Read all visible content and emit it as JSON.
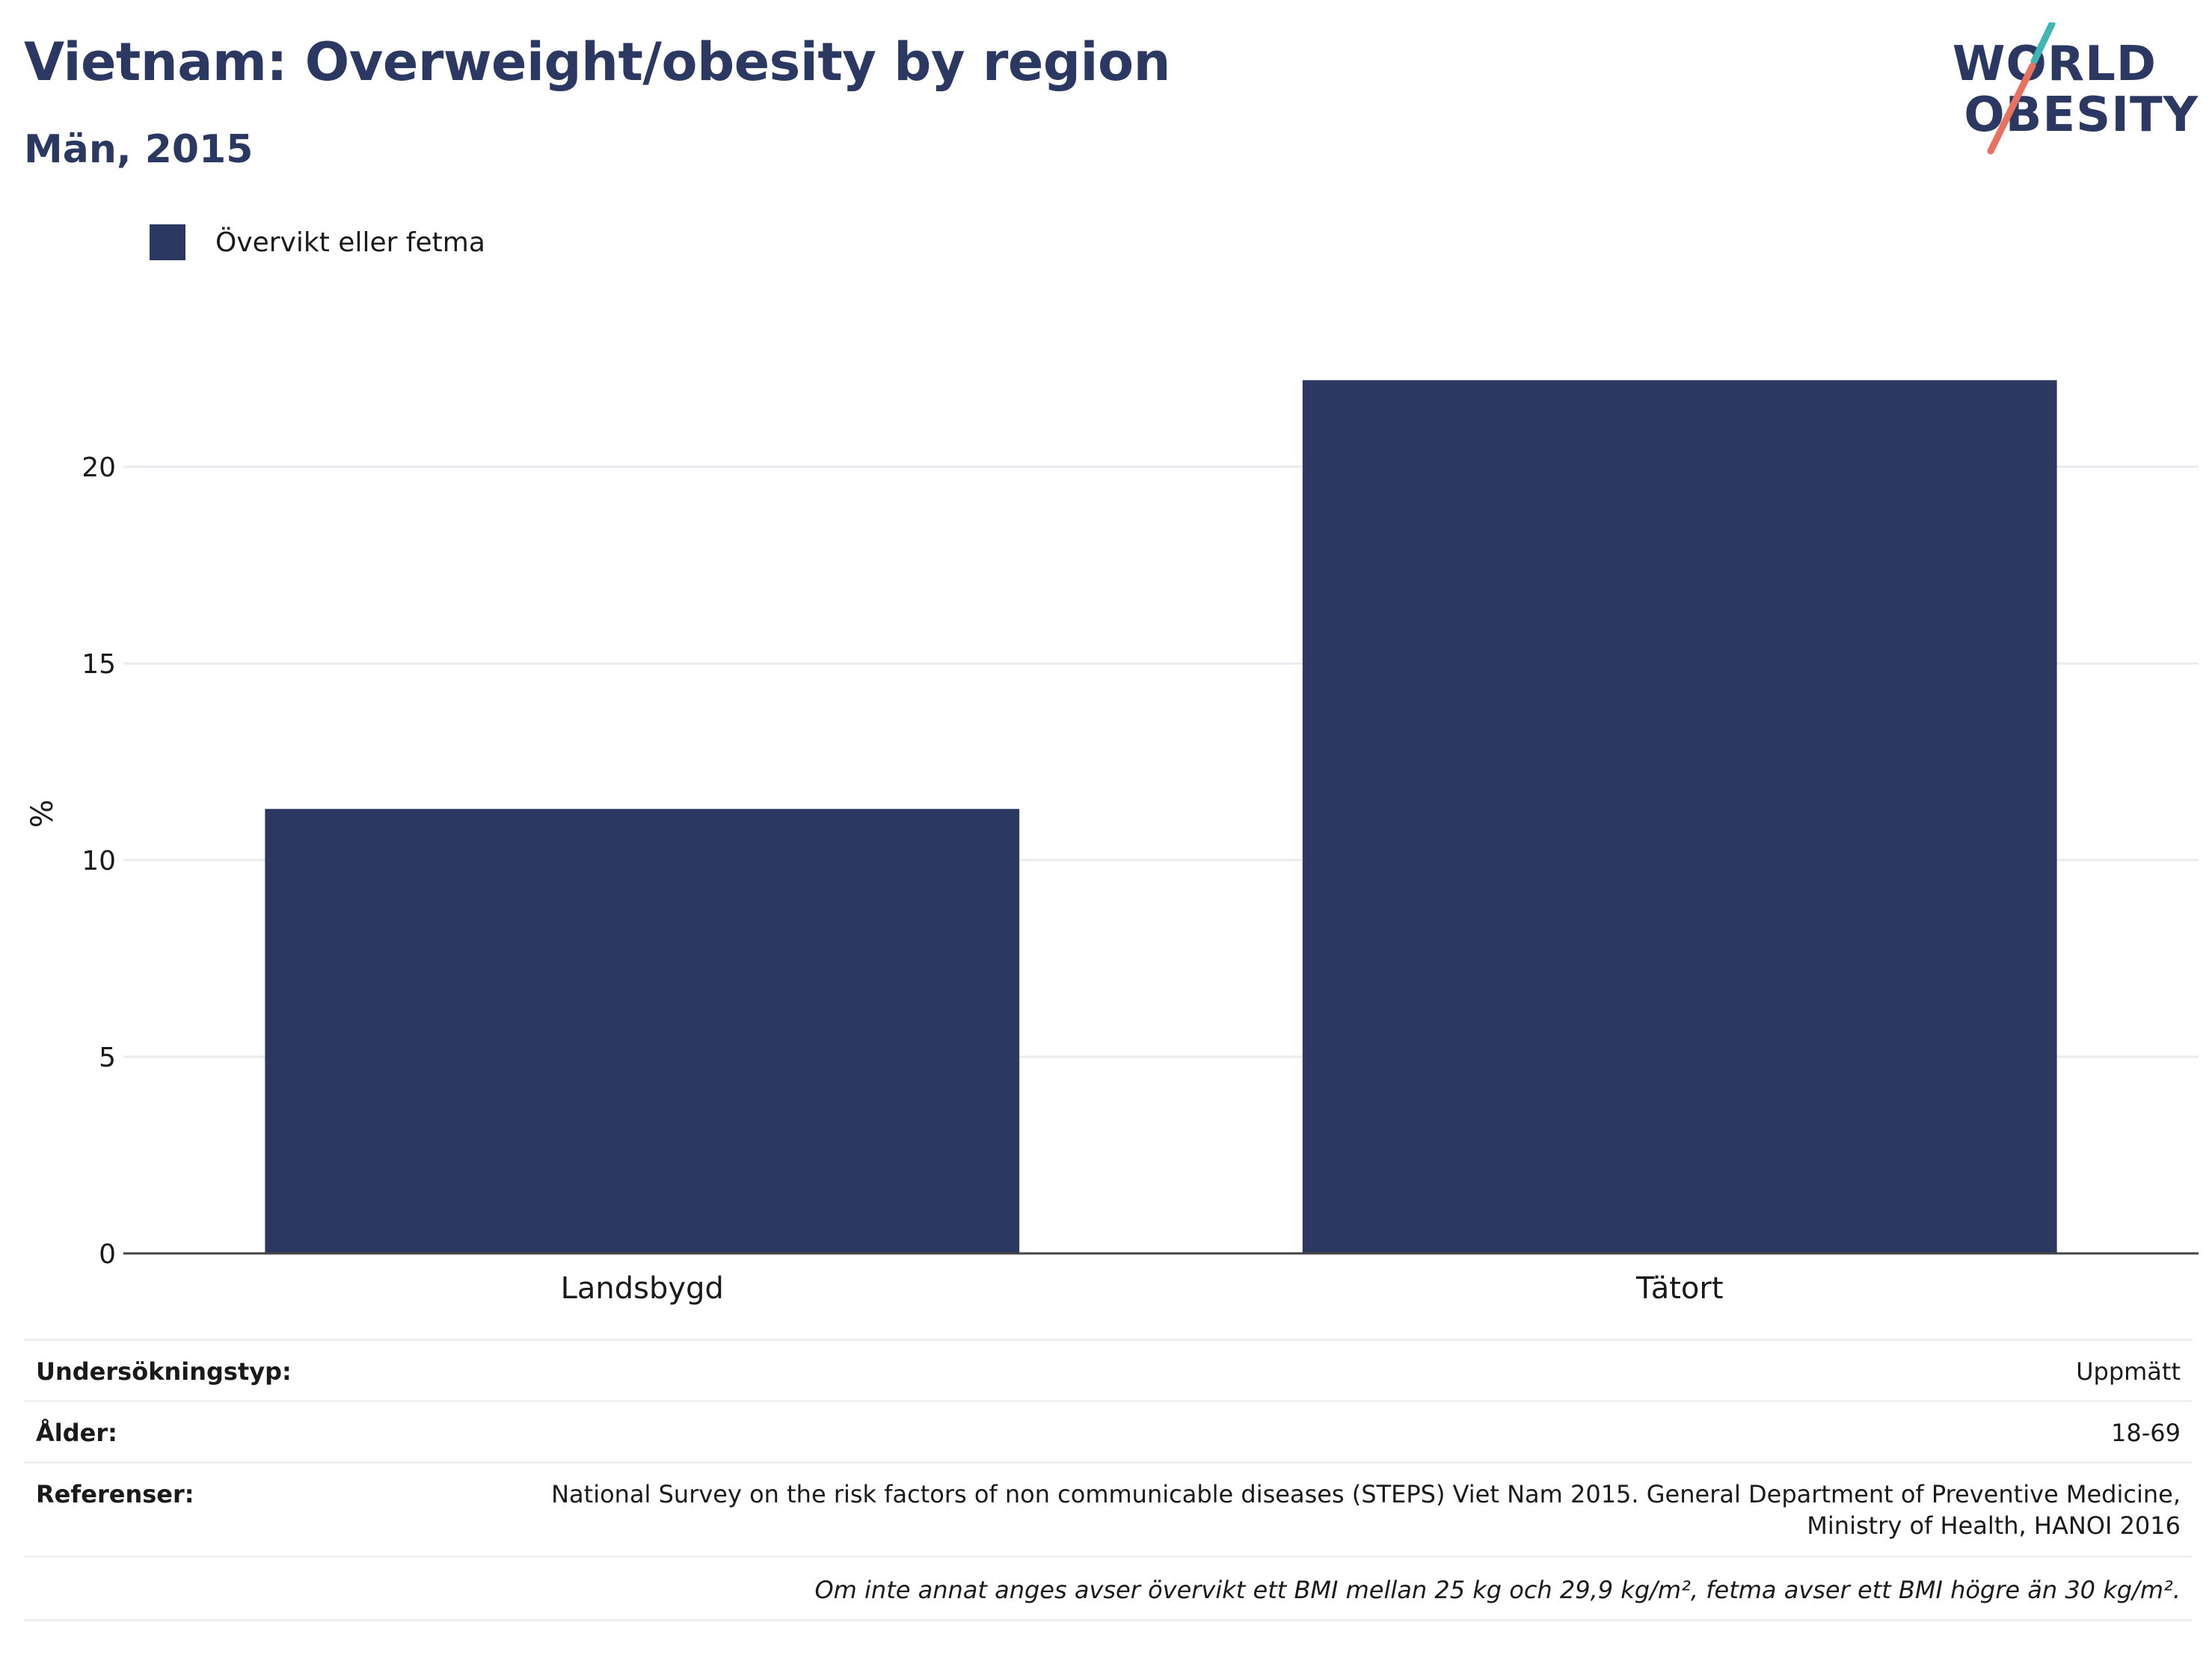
{
  "header": {
    "title": "Vietnam: Overweight/obesity by region",
    "subtitle": "Män, 2015"
  },
  "logo": {
    "line1": "WORLD",
    "line2": "OBESITY",
    "accent_teal": "#3fb6b4",
    "accent_coral": "#e8715f"
  },
  "chart_data": {
    "type": "bar",
    "categories": [
      "Landsbygd",
      "Tätort"
    ],
    "series": [
      {
        "name": "Övervikt eller fetma",
        "values": [
          11.3,
          22.2
        ],
        "color": "#2b3862"
      }
    ],
    "ylabel": "%",
    "xlabel": "",
    "ylim": [
      0,
      23.5
    ],
    "yticks": [
      0,
      5,
      10,
      15,
      20
    ],
    "grid": true,
    "legend_position": "top-left"
  },
  "details": {
    "survey_type_label": "Undersökningstyp:",
    "survey_type_value": "Uppmätt",
    "age_label": "Ålder:",
    "age_value": "18-69",
    "references_label": "Referenser:",
    "references_line1": "National Survey on the risk factors of non communicable diseases (STEPS) Viet Nam 2015. General Department of Preventive Medicine,",
    "references_line2": "Ministry of Health, HANOI 2016",
    "note": "Om inte annat anges avser övervikt ett BMI mellan 25 kg och 29,9 kg/m², fetma avser ett BMI högre än 30 kg/m²."
  }
}
